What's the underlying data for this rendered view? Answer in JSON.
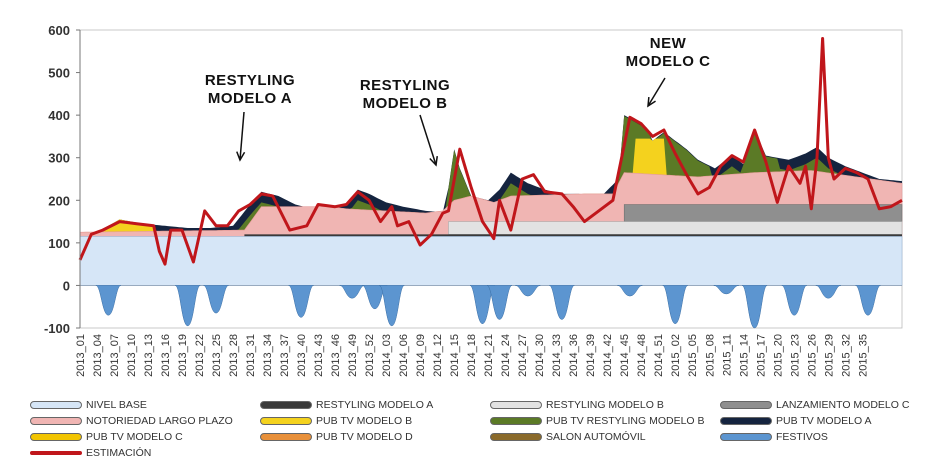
{
  "chart_data": {
    "type": "area",
    "y_ticks": [
      "600",
      "500",
      "400",
      "300",
      "200",
      "100",
      "0",
      "-100"
    ],
    "ylim": [
      -100,
      600
    ],
    "x_ticks": [
      "2013_01",
      "2013_04",
      "2013_07",
      "2013_10",
      "2013_13",
      "2013_16",
      "2013_19",
      "2013_22",
      "2013_25",
      "2013_28",
      "2013_31",
      "2013_34",
      "2013_37",
      "2013_40",
      "2013_43",
      "2013_46",
      "2013_49",
      "2013_52",
      "2014_03",
      "2014_06",
      "2014_09",
      "2014_12",
      "2014_15",
      "2014_18",
      "2014_21",
      "2014_24",
      "2014_27",
      "2014_30",
      "2014_33",
      "2014_36",
      "2014_39",
      "2014_42",
      "2014_45",
      "2014_48",
      "2014_51",
      "2015_02",
      "2015_05",
      "2015_08",
      "2015_11",
      "2015_14",
      "2015_17",
      "2015_20",
      "2015_23",
      "2015_26",
      "2015_29",
      "2015_32",
      "2015_35"
    ],
    "num_weeks": 139,
    "colors": {
      "nivel_base": "#d6e6f7",
      "restyling_a": "#3a3a3a",
      "restyling_b": "#e2e2e2",
      "lanzamiento_c": "#8f8f8f",
      "notoriedad": "#f0b5b3",
      "pub_b": "#f4d21e",
      "pub_restyling_b": "#5b7a26",
      "pub_a": "#15243f",
      "pub_c": "#f2c400",
      "pub_d": "#e8903a",
      "salon": "#8a6a2b",
      "festivos": "#5c95d0",
      "estimacion": "#c0161b"
    },
    "legend": [
      {
        "key": "nivel_base",
        "label": "NIVEL BASE"
      },
      {
        "key": "restyling_a",
        "label": "RESTYLING MODELO A"
      },
      {
        "key": "restyling_b",
        "label": "RESTYLING MODELO B"
      },
      {
        "key": "lanzamiento_c",
        "label": "LANZAMIENTO MODELO C"
      },
      {
        "key": "notoriedad",
        "label": "NOTORIEDAD LARGO PLAZO"
      },
      {
        "key": "pub_b",
        "label": "PUB TV MODELO B"
      },
      {
        "key": "pub_restyling_b",
        "label": "PUB TV RESTYLING MODELO B"
      },
      {
        "key": "pub_a",
        "label": "PUB TV MODELO A"
      },
      {
        "key": "pub_c",
        "label": "PUB TV MODELO C"
      },
      {
        "key": "pub_d",
        "label": "PUB TV MODELO D"
      },
      {
        "key": "salon",
        "label": "SALON AUTOMÓVIL"
      },
      {
        "key": "festivos",
        "label": "FESTIVOS"
      },
      {
        "key": "estimacion",
        "label": "ESTIMACIÓN",
        "line": true
      }
    ],
    "annotations": [
      {
        "lines": [
          "RESTYLING",
          "MODELO A"
        ],
        "week": 34
      },
      {
        "lines": [
          "RESTYLING",
          "MODELO B"
        ],
        "week": 66
      },
      {
        "lines": [
          "NEW",
          "MODELO C"
        ],
        "week": 106
      }
    ],
    "baseline": 115,
    "restyling_a_level": 120,
    "restyling_b_start_week": 66,
    "restyling_b_level": 150,
    "lanzamiento_c_start_week": 97,
    "lanzamiento_c_level": 190,
    "total_points": [
      [
        1,
        120
      ],
      [
        4,
        125
      ],
      [
        8,
        155
      ],
      [
        12,
        145
      ],
      [
        16,
        140
      ],
      [
        20,
        135
      ],
      [
        24,
        135
      ],
      [
        28,
        140
      ],
      [
        31,
        190
      ],
      [
        33,
        220
      ],
      [
        36,
        210
      ],
      [
        39,
        190
      ],
      [
        42,
        180
      ],
      [
        45,
        180
      ],
      [
        48,
        190
      ],
      [
        50,
        225
      ],
      [
        52,
        215
      ],
      [
        55,
        195
      ],
      [
        58,
        185
      ],
      [
        62,
        175
      ],
      [
        65,
        172
      ],
      [
        66,
        230
      ],
      [
        67,
        320
      ],
      [
        68,
        275
      ],
      [
        70,
        210
      ],
      [
        73,
        200
      ],
      [
        75,
        225
      ],
      [
        77,
        265
      ],
      [
        80,
        240
      ],
      [
        83,
        225
      ],
      [
        86,
        215
      ],
      [
        89,
        215
      ],
      [
        93,
        210
      ],
      [
        96,
        250
      ],
      [
        97,
        400
      ],
      [
        99,
        385
      ],
      [
        101,
        370
      ],
      [
        102,
        340
      ],
      [
        104,
        360
      ],
      [
        108,
        320
      ],
      [
        110,
        295
      ],
      [
        113,
        275
      ],
      [
        116,
        305
      ],
      [
        118,
        285
      ],
      [
        120,
        365
      ],
      [
        122,
        305
      ],
      [
        126,
        295
      ],
      [
        129,
        310
      ],
      [
        131,
        325
      ],
      [
        133,
        300
      ],
      [
        136,
        280
      ],
      [
        139,
        265
      ],
      [
        142,
        250
      ],
      [
        146,
        245
      ]
    ],
    "notoriedad_points": [
      [
        1,
        125
      ],
      [
        30,
        130
      ],
      [
        33,
        185
      ],
      [
        45,
        185
      ],
      [
        48,
        180
      ],
      [
        55,
        175
      ],
      [
        62,
        170
      ],
      [
        65,
        175
      ],
      [
        67,
        200
      ],
      [
        70,
        210
      ],
      [
        74,
        195
      ],
      [
        77,
        210
      ],
      [
        90,
        215
      ],
      [
        95,
        215
      ],
      [
        97,
        265
      ],
      [
        110,
        255
      ],
      [
        120,
        265
      ],
      [
        130,
        270
      ],
      [
        146,
        240
      ]
    ],
    "festivos": [
      [
        6,
        -70
      ],
      [
        20,
        -95
      ],
      [
        25,
        -65
      ],
      [
        40,
        -75
      ],
      [
        49,
        -30
      ],
      [
        53,
        -55
      ],
      [
        56,
        -95
      ],
      [
        72,
        -90
      ],
      [
        75,
        -80
      ],
      [
        80,
        -25
      ],
      [
        86,
        -80
      ],
      [
        98,
        -25
      ],
      [
        106,
        -90
      ],
      [
        115,
        -20
      ],
      [
        120,
        -100
      ],
      [
        127,
        -70
      ],
      [
        133,
        -30
      ],
      [
        140,
        -70
      ]
    ],
    "estimacion_points": [
      [
        1,
        60
      ],
      [
        3,
        120
      ],
      [
        5,
        130
      ],
      [
        8,
        150
      ],
      [
        11,
        145
      ],
      [
        14,
        140
      ],
      [
        15,
        80
      ],
      [
        16,
        50
      ],
      [
        17,
        130
      ],
      [
        19,
        130
      ],
      [
        21,
        55
      ],
      [
        23,
        175
      ],
      [
        25,
        140
      ],
      [
        27,
        140
      ],
      [
        29,
        175
      ],
      [
        31,
        190
      ],
      [
        33,
        215
      ],
      [
        35,
        210
      ],
      [
        38,
        130
      ],
      [
        41,
        140
      ],
      [
        43,
        190
      ],
      [
        46,
        185
      ],
      [
        48,
        190
      ],
      [
        50,
        220
      ],
      [
        52,
        200
      ],
      [
        54,
        150
      ],
      [
        56,
        185
      ],
      [
        57,
        140
      ],
      [
        59,
        150
      ],
      [
        61,
        95
      ],
      [
        63,
        120
      ],
      [
        65,
        170
      ],
      [
        66,
        175
      ],
      [
        68,
        320
      ],
      [
        70,
        230
      ],
      [
        72,
        150
      ],
      [
        74,
        110
      ],
      [
        75,
        200
      ],
      [
        77,
        130
      ],
      [
        79,
        250
      ],
      [
        81,
        260
      ],
      [
        83,
        220
      ],
      [
        86,
        215
      ],
      [
        88,
        185
      ],
      [
        90,
        150
      ],
      [
        92,
        170
      ],
      [
        95,
        200
      ],
      [
        98,
        395
      ],
      [
        100,
        380
      ],
      [
        102,
        350
      ],
      [
        104,
        365
      ],
      [
        106,
        310
      ],
      [
        108,
        260
      ],
      [
        110,
        215
      ],
      [
        112,
        230
      ],
      [
        114,
        280
      ],
      [
        116,
        305
      ],
      [
        118,
        290
      ],
      [
        120,
        365
      ],
      [
        122,
        290
      ],
      [
        124,
        195
      ],
      [
        126,
        280
      ],
      [
        128,
        240
      ],
      [
        129,
        280
      ],
      [
        130,
        180
      ],
      [
        131,
        300
      ],
      [
        132,
        580
      ],
      [
        133,
        300
      ],
      [
        134,
        250
      ],
      [
        136,
        275
      ],
      [
        138,
        265
      ],
      [
        140,
        250
      ],
      [
        142,
        180
      ],
      [
        144,
        185
      ],
      [
        146,
        200
      ]
    ]
  }
}
